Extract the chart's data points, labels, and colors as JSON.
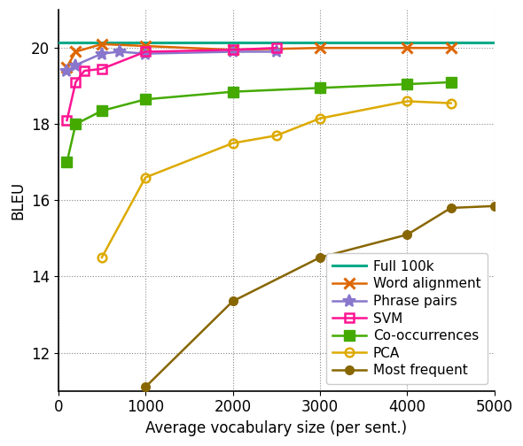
{
  "title": "",
  "xlabel": "Average vocabulary size (per sent.)",
  "ylabel": "BLEU",
  "xlim": [
    0,
    5000
  ],
  "ylim": [
    11,
    21
  ],
  "yticks": [
    12,
    14,
    16,
    18,
    20
  ],
  "xticks": [
    0,
    1000,
    2000,
    3000,
    4000,
    5000
  ],
  "full_100k": {
    "y": 20.15,
    "color": "#00aa88",
    "label": "Full 100k",
    "linewidth": 2.2
  },
  "word_alignment": {
    "x": [
      100,
      200,
      500,
      1000,
      2000,
      3000,
      4000,
      4500
    ],
    "y": [
      19.5,
      19.9,
      20.1,
      20.05,
      19.95,
      20.0,
      20.0,
      20.0
    ],
    "color": "#dd6600",
    "marker": "x",
    "label": "Word alignment"
  },
  "phrase_pairs": {
    "x": [
      100,
      200,
      500,
      700,
      1000,
      2000,
      2500
    ],
    "y": [
      19.4,
      19.55,
      19.85,
      19.9,
      19.85,
      19.9,
      19.9
    ],
    "color": "#8877cc",
    "marker": "x",
    "label": "Phrase pairs"
  },
  "svm": {
    "x": [
      100,
      200,
      300,
      500,
      1000,
      2000,
      2500
    ],
    "y": [
      18.1,
      19.1,
      19.4,
      19.45,
      19.9,
      19.95,
      20.0
    ],
    "color": "#ff1493",
    "marker": "s",
    "label": "SVM"
  },
  "co_occurrences": {
    "x": [
      100,
      200,
      500,
      1000,
      2000,
      3000,
      4000,
      4500
    ],
    "y": [
      17.0,
      18.0,
      18.35,
      18.65,
      18.85,
      18.95,
      19.05,
      19.1
    ],
    "color": "#44aa00",
    "marker": "s",
    "label": "Co-occurrences"
  },
  "pca": {
    "x": [
      500,
      1000,
      2000,
      2500,
      3000,
      4000,
      4500
    ],
    "y": [
      14.5,
      16.6,
      17.5,
      17.7,
      18.15,
      18.6,
      18.55
    ],
    "color": "#ddaa00",
    "marker": "o",
    "label": "PCA"
  },
  "most_frequent": {
    "x": [
      1000,
      2000,
      3000,
      4000,
      4500,
      5000
    ],
    "y": [
      11.1,
      13.35,
      14.5,
      15.1,
      15.8,
      15.85
    ],
    "color": "#886600",
    "marker": "o",
    "label": "Most frequent"
  },
  "background_color": "#ffffff",
  "grid_color": "#888888"
}
